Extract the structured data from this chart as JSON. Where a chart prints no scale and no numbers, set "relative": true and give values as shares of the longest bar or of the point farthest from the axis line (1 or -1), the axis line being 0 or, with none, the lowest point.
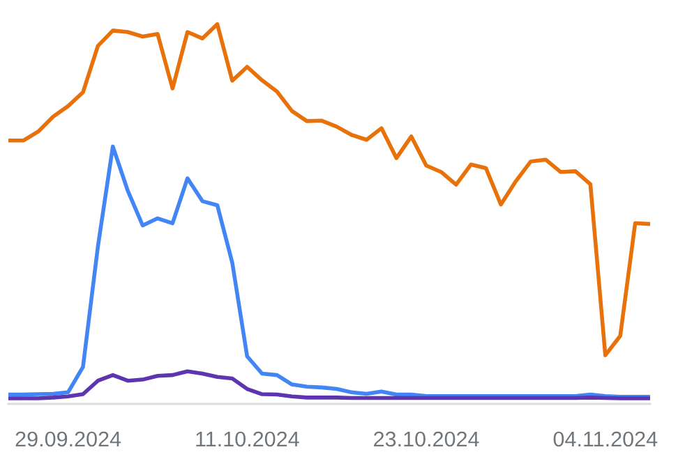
{
  "chart_data": {
    "type": "line",
    "relative": true,
    "grid": false,
    "legend": false,
    "marker": "none",
    "line_style": "solid",
    "x": [
      "2024-09-25",
      "2024-09-26",
      "2024-09-27",
      "2024-09-28",
      "2024-09-29",
      "2024-09-30",
      "2024-10-01",
      "2024-10-02",
      "2024-10-03",
      "2024-10-04",
      "2024-10-05",
      "2024-10-06",
      "2024-10-07",
      "2024-10-08",
      "2024-10-09",
      "2024-10-10",
      "2024-10-11",
      "2024-10-12",
      "2024-10-13",
      "2024-10-14",
      "2024-10-15",
      "2024-10-16",
      "2024-10-17",
      "2024-10-18",
      "2024-10-19",
      "2024-10-20",
      "2024-10-21",
      "2024-10-22",
      "2024-10-23",
      "2024-10-24",
      "2024-10-25",
      "2024-10-26",
      "2024-10-27",
      "2024-10-28",
      "2024-10-29",
      "2024-10-30",
      "2024-10-31",
      "2024-11-01",
      "2024-11-02",
      "2024-11-03",
      "2024-11-04",
      "2024-11-05",
      "2024-11-06",
      "2024-11-07"
    ],
    "xlim": [
      "2024-09-25",
      "2024-11-07"
    ],
    "xticks": [
      {
        "value": "2024-09-29",
        "label": "29.09.2024"
      },
      {
        "value": "2024-10-11",
        "label": "11.10.2024"
      },
      {
        "value": "2024-10-23",
        "label": "23.10.2024"
      },
      {
        "value": "2024-11-04",
        "label": "04.11.2024"
      }
    ],
    "series": [
      {
        "color": "#e8710a",
        "values": [
          0.689,
          0.689,
          0.713,
          0.753,
          0.781,
          0.818,
          0.942,
          0.983,
          0.979,
          0.967,
          0.974,
          0.828,
          0.979,
          0.962,
          1,
          0.849,
          0.886,
          0.85,
          0.82,
          0.768,
          0.741,
          0.742,
          0.726,
          0.704,
          0.691,
          0.722,
          0.642,
          0.7,
          0.622,
          0.605,
          0.571,
          0.625,
          0.615,
          0.518,
          0.58,
          0.633,
          0.638,
          0.605,
          0.607,
          0.572,
          0.115,
          0.167,
          0.468,
          0.466
        ]
      },
      {
        "color": "#4285f4",
        "values": [
          0.01,
          0.01,
          0.011,
          0.012,
          0.016,
          0.084,
          0.406,
          0.673,
          0.555,
          0.462,
          0.481,
          0.468,
          0.588,
          0.527,
          0.516,
          0.363,
          0.112,
          0.066,
          0.062,
          0.037,
          0.031,
          0.029,
          0.025,
          0.016,
          0.012,
          0.018,
          0.01,
          0.01,
          0.006,
          0.006,
          0.006,
          0.006,
          0.006,
          0.006,
          0.006,
          0.006,
          0.006,
          0.006,
          0.006,
          0.01,
          0.006,
          0.004,
          0.004,
          0.004
        ]
      },
      {
        "color": "#5e35b1",
        "values": [
          0,
          0,
          0,
          0.002,
          0.005,
          0.011,
          0.047,
          0.062,
          0.047,
          0.05,
          0.06,
          0.062,
          0.072,
          0.066,
          0.057,
          0.053,
          0.025,
          0.011,
          0.01,
          0.005,
          0.002,
          0.002,
          0.002,
          0.001,
          0.001,
          0.001,
          0.001,
          0.001,
          0.001,
          0.001,
          0.001,
          0.001,
          0.001,
          0.001,
          0.001,
          0.001,
          0.001,
          0.001,
          0.001,
          0.002,
          0.001,
          0,
          0,
          0
        ]
      }
    ]
  }
}
